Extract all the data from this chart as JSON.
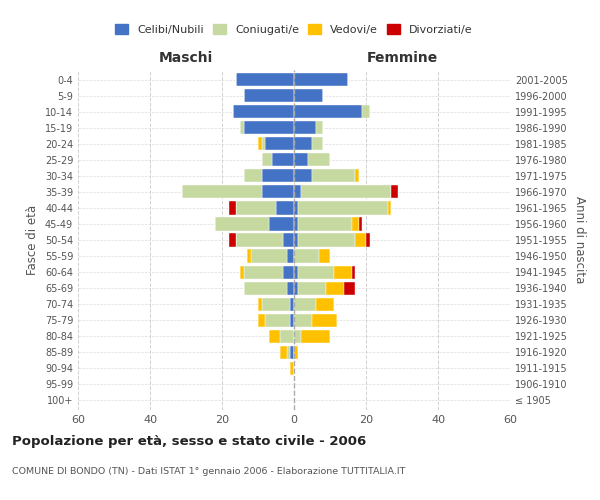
{
  "age_groups": [
    "100+",
    "95-99",
    "90-94",
    "85-89",
    "80-84",
    "75-79",
    "70-74",
    "65-69",
    "60-64",
    "55-59",
    "50-54",
    "45-49",
    "40-44",
    "35-39",
    "30-34",
    "25-29",
    "20-24",
    "15-19",
    "10-14",
    "5-9",
    "0-4"
  ],
  "birth_years": [
    "≤ 1905",
    "1906-1910",
    "1911-1915",
    "1916-1920",
    "1921-1925",
    "1926-1930",
    "1931-1935",
    "1936-1940",
    "1941-1945",
    "1946-1950",
    "1951-1955",
    "1956-1960",
    "1961-1965",
    "1966-1970",
    "1971-1975",
    "1976-1980",
    "1981-1985",
    "1986-1990",
    "1991-1995",
    "1996-2000",
    "2001-2005"
  ],
  "maschi": {
    "celibi": [
      0,
      0,
      0,
      1,
      0,
      1,
      1,
      2,
      3,
      2,
      3,
      7,
      5,
      9,
      9,
      6,
      8,
      14,
      17,
      14,
      16
    ],
    "coniugati": [
      0,
      0,
      0,
      1,
      4,
      7,
      8,
      12,
      11,
      10,
      13,
      15,
      11,
      22,
      5,
      3,
      1,
      1,
      0,
      0,
      0
    ],
    "vedovi": [
      0,
      0,
      1,
      2,
      3,
      2,
      1,
      0,
      1,
      1,
      0,
      0,
      0,
      0,
      0,
      0,
      1,
      0,
      0,
      0,
      0
    ],
    "divorziati": [
      0,
      0,
      0,
      0,
      0,
      0,
      0,
      0,
      0,
      0,
      2,
      0,
      2,
      0,
      0,
      0,
      0,
      0,
      0,
      0,
      0
    ]
  },
  "femmine": {
    "nubili": [
      0,
      0,
      0,
      0,
      0,
      0,
      0,
      1,
      1,
      0,
      1,
      1,
      1,
      2,
      5,
      4,
      5,
      6,
      19,
      8,
      15
    ],
    "coniugate": [
      0,
      0,
      0,
      0,
      2,
      5,
      6,
      8,
      10,
      7,
      16,
      15,
      25,
      25,
      12,
      6,
      3,
      2,
      2,
      0,
      0
    ],
    "vedove": [
      0,
      0,
      0,
      1,
      8,
      7,
      5,
      5,
      5,
      3,
      3,
      2,
      1,
      0,
      1,
      0,
      0,
      0,
      0,
      0,
      0
    ],
    "divorziate": [
      0,
      0,
      0,
      0,
      0,
      0,
      0,
      3,
      1,
      0,
      1,
      1,
      0,
      2,
      0,
      0,
      0,
      0,
      0,
      0,
      0
    ]
  },
  "colors": {
    "celibi": "#4472c4",
    "coniugati": "#c5d9a0",
    "vedovi": "#ffc000",
    "divorziati": "#cc0000"
  },
  "title": "Popolazione per età, sesso e stato civile - 2006",
  "subtitle": "COMUNE DI BONDO (TN) - Dati ISTAT 1° gennaio 2006 - Elaborazione TUTTITALIA.IT",
  "ylabel_left": "Fasce di età",
  "ylabel_right": "Anni di nascita",
  "xlabel_left": "Maschi",
  "xlabel_right": "Femmine",
  "xlim": 60,
  "background_color": "#ffffff",
  "grid_color": "#cccccc"
}
